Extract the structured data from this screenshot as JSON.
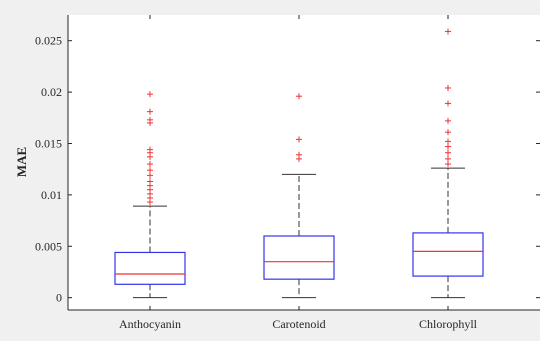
{
  "chart_data": {
    "type": "box",
    "title": "",
    "xlabel": "",
    "ylabel": "MAE",
    "ylim": [
      -0.0012,
      0.0275
    ],
    "yticks": [
      0,
      0.005,
      0.01,
      0.015,
      0.02,
      0.025
    ],
    "ytick_labels": [
      "0",
      "0.005",
      "0.01",
      "0.015",
      "0.02",
      "0.025"
    ],
    "grid": false,
    "categories": [
      "Anthocyanin",
      "Carotenoid",
      "Chlorophyll"
    ],
    "boxes": [
      {
        "name": "Anthocyanin",
        "whisker_low": 0.0,
        "q1": 0.0013,
        "median": 0.0023,
        "q3": 0.0044,
        "whisker_high": 0.0089,
        "outliers": [
          0.0093,
          0.0097,
          0.0101,
          0.0105,
          0.0109,
          0.0113,
          0.0119,
          0.0124,
          0.013,
          0.0137,
          0.0141,
          0.0144,
          0.017,
          0.0173,
          0.0181,
          0.0198
        ]
      },
      {
        "name": "Carotenoid",
        "whisker_low": 0.0,
        "q1": 0.0018,
        "median": 0.0035,
        "q3": 0.006,
        "whisker_high": 0.012,
        "outliers": [
          0.0135,
          0.0139,
          0.0154,
          0.0196
        ]
      },
      {
        "name": "Chlorophyll",
        "whisker_low": 0.0,
        "q1": 0.0021,
        "median": 0.0045,
        "q3": 0.0063,
        "whisker_high": 0.0126,
        "outliers": [
          0.013,
          0.0135,
          0.0141,
          0.0147,
          0.0152,
          0.0161,
          0.0172,
          0.0189,
          0.0204,
          0.0259
        ]
      }
    ],
    "colors": {
      "box": "#3333ee",
      "median": "#ee3333",
      "whisker": "#333333",
      "outlier": "#ee3333",
      "plot_bg": "#ffffff",
      "figure_bg": "#f0f0f0",
      "axis": "#262626"
    }
  }
}
